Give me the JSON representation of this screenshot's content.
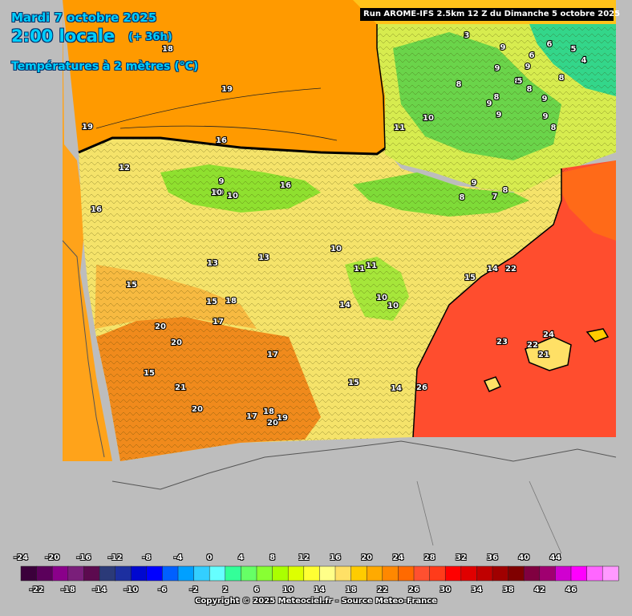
{
  "header": {
    "date": "Mardi 7 octobre 2025",
    "local_time": "2:00 locale",
    "lead_time": "(+ 36h)",
    "parameter": "Températures à 2 mètres (°C)"
  },
  "run_banner": "Run AROME-IFS 2.5km 12 Z du Dimanche 5 octobre 2025",
  "copyright": "Copyright © 2025 Meteociel.fr - Source Meteo-France",
  "colors": {
    "background_gray": "#bdbdbd",
    "sea_north": "#ff9a00",
    "sea_west": "#ff9f00",
    "mediterranean": "#ff4d2e",
    "iberia_base": "#f5e36a",
    "southwest_warm": "#f08a1c",
    "pyrenees_green": "#8fe02f",
    "france_green": "#55d64a",
    "title_cyan": "#00cfff"
  },
  "legend": {
    "top_labels": [
      "-24",
      "-20",
      "-16",
      "-12",
      "-8",
      "-4",
      "0",
      "4",
      "8",
      "12",
      "16",
      "20",
      "24",
      "28",
      "32",
      "36",
      "40",
      "44"
    ],
    "bottom_labels": [
      "-22",
      "-18",
      "-14",
      "-10",
      "-6",
      "-2",
      "2",
      "6",
      "10",
      "14",
      "18",
      "22",
      "26",
      "30",
      "34",
      "38",
      "42",
      "46"
    ],
    "colors": [
      "#3b003b",
      "#5b005b",
      "#8a008a",
      "#7a1f7a",
      "#5c0a4f",
      "#2b3a78",
      "#1c2fa0",
      "#0008d0",
      "#0000ff",
      "#0060ff",
      "#00a0ff",
      "#33cfff",
      "#66ffff",
      "#33ff99",
      "#66ff66",
      "#88ff33",
      "#aaff00",
      "#ddff00",
      "#ffff33",
      "#ffff88",
      "#ffe066",
      "#ffcc00",
      "#ffaa00",
      "#ff8800",
      "#ff6a00",
      "#ff5030",
      "#ff3b1a",
      "#ff0000",
      "#e00000",
      "#c00000",
      "#a00000",
      "#800000",
      "#800040",
      "#a00070",
      "#d000d0",
      "#ff00ff",
      "#ff66ff",
      "#ff99ff"
    ]
  },
  "temperature_labels": [
    {
      "text": "18"
    },
    {
      "text": "19"
    },
    {
      "text": "19"
    },
    {
      "text": "16"
    },
    {
      "text": "12"
    },
    {
      "text": "16"
    },
    {
      "text": "10"
    },
    {
      "text": "9"
    },
    {
      "text": "10"
    },
    {
      "text": "10"
    },
    {
      "text": "16"
    },
    {
      "text": "13"
    },
    {
      "text": "13"
    },
    {
      "text": "15"
    },
    {
      "text": "15"
    },
    {
      "text": "17"
    },
    {
      "text": "20"
    },
    {
      "text": "20"
    },
    {
      "text": "15"
    },
    {
      "text": "21"
    },
    {
      "text": "20"
    },
    {
      "text": "17"
    },
    {
      "text": "18"
    },
    {
      "text": "17"
    },
    {
      "text": "18"
    },
    {
      "text": "20"
    },
    {
      "text": "19"
    },
    {
      "text": "14"
    },
    {
      "text": "15"
    },
    {
      "text": "10"
    },
    {
      "text": "11"
    },
    {
      "text": "11"
    },
    {
      "text": "10"
    },
    {
      "text": "10"
    },
    {
      "text": "14"
    },
    {
      "text": "11"
    },
    {
      "text": "10"
    },
    {
      "text": "9"
    },
    {
      "text": "8"
    },
    {
      "text": "8"
    },
    {
      "text": "9"
    },
    {
      "text": "7"
    },
    {
      "text": "9"
    },
    {
      "text": "8"
    },
    {
      "text": "9"
    },
    {
      "text": "8"
    },
    {
      "text": "9"
    },
    {
      "text": "3"
    },
    {
      "text": "9"
    },
    {
      "text": "6"
    },
    {
      "text": "5"
    },
    {
      "text": "4"
    },
    {
      "text": "6"
    },
    {
      "text": "5"
    },
    {
      "text": "8"
    },
    {
      "text": "8"
    },
    {
      "text": "9"
    },
    {
      "text": "8"
    },
    {
      "text": "9"
    },
    {
      "text": "8"
    },
    {
      "text": "22"
    },
    {
      "text": "23"
    },
    {
      "text": "24"
    },
    {
      "text": "22"
    },
    {
      "text": "21"
    },
    {
      "text": "15"
    },
    {
      "text": "14"
    },
    {
      "text": "26"
    }
  ]
}
